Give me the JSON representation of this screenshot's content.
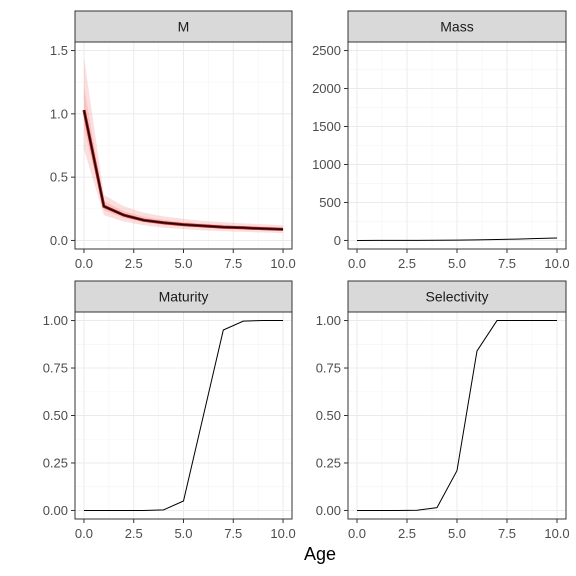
{
  "chart_data": [
    {
      "type": "line",
      "title": "M",
      "x": [
        0,
        1,
        2,
        3,
        4,
        5,
        6,
        7,
        8,
        9,
        10
      ],
      "xlim": [
        0,
        10
      ],
      "ylim": [
        0,
        1.5
      ],
      "xticks": [
        "0.0",
        "2.5",
        "5.0",
        "7.5",
        "10.0"
      ],
      "yticks": [
        "0.0",
        "0.5",
        "1.0",
        "1.5"
      ],
      "series": [
        {
          "values": [
            1.03,
            0.27,
            0.2,
            0.16,
            0.14,
            0.125,
            0.115,
            0.105,
            0.1,
            0.093,
            0.088
          ],
          "band_low": [
            0.72,
            0.2,
            0.15,
            0.12,
            0.1,
            0.09,
            0.08,
            0.073,
            0.068,
            0.063,
            0.058
          ],
          "band_high": [
            1.45,
            0.36,
            0.27,
            0.22,
            0.19,
            0.17,
            0.155,
            0.145,
            0.135,
            0.128,
            0.12
          ],
          "color": "#000000",
          "band_color": "#f4a3a3",
          "inner_color": "#8b0000"
        }
      ]
    },
    {
      "type": "line",
      "title": "Mass",
      "x": [
        0,
        1,
        2,
        3,
        4,
        5,
        6,
        7,
        8,
        9,
        10
      ],
      "xlim": [
        0,
        10
      ],
      "ylim": [
        0,
        2500
      ],
      "xticks": [
        "0.0",
        "2.5",
        "5.0",
        "7.5",
        "10.0"
      ],
      "yticks": [
        "0",
        "500",
        "1000",
        "1500",
        "2000",
        "2500"
      ],
      "series": [
        {
          "values": [
            0,
            0.3,
            0.8,
            1.6,
            3,
            5,
            8,
            12,
            18,
            25,
            33
          ],
          "color": "#000000",
          "band_color": "#f4a3a3"
        }
      ]
    },
    {
      "type": "line",
      "title": "Maturity",
      "x": [
        0,
        1,
        2,
        3,
        4,
        5,
        6,
        7,
        8,
        9,
        10
      ],
      "xlim": [
        0,
        10
      ],
      "ylim": [
        0,
        1
      ],
      "xticks": [
        "0.0",
        "2.5",
        "5.0",
        "7.5",
        "10.0"
      ],
      "yticks": [
        "0.00",
        "0.25",
        "0.50",
        "0.75",
        "1.00"
      ],
      "series": [
        {
          "values": [
            0,
            0,
            0,
            0,
            0.003,
            0.05,
            0.5,
            0.95,
            0.997,
            1,
            1
          ],
          "color": "#000000"
        }
      ]
    },
    {
      "type": "line",
      "title": "Selectivity",
      "x": [
        0,
        1,
        2,
        3,
        4,
        5,
        6,
        7,
        8,
        9,
        10
      ],
      "xlim": [
        0,
        10
      ],
      "ylim": [
        0,
        1
      ],
      "xticks": [
        "0.0",
        "2.5",
        "5.0",
        "7.5",
        "10.0"
      ],
      "yticks": [
        "0.00",
        "0.25",
        "0.50",
        "0.75",
        "1.00"
      ],
      "series": [
        {
          "values": [
            0,
            0,
            0,
            0.001,
            0.015,
            0.21,
            0.84,
            1,
            1,
            1,
            1
          ],
          "color": "#000000"
        }
      ]
    }
  ],
  "xlabel": "Age",
  "grid": true,
  "colors": {
    "strip_background": "#d9d9d9",
    "panel_border": "#333333",
    "grid": "#ebebeb"
  }
}
